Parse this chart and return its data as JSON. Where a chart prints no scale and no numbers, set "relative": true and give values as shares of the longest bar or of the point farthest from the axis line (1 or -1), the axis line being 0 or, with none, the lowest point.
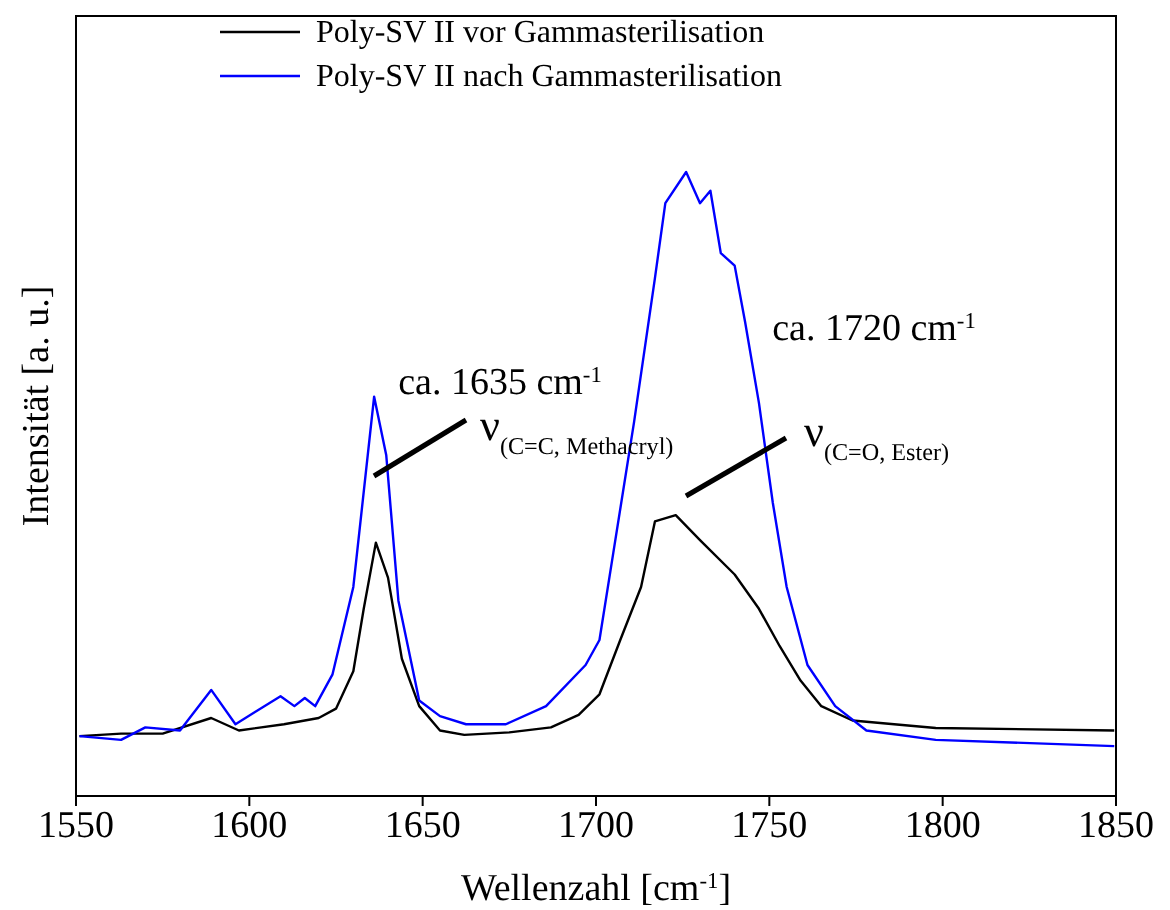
{
  "chart_data": {
    "type": "line",
    "relative": true,
    "xlabel": "Wellenzahl [cm$^{-1}$]",
    "ylabel": "Intensität [a. u.]",
    "xlim": [
      1550,
      1850
    ],
    "xticks": [
      1550,
      1600,
      1650,
      1700,
      1750,
      1800,
      1850
    ],
    "legend": "top left",
    "grid": false,
    "marker": "none",
    "line_style": "solid",
    "series": [
      {
        "name": "Poly-SV II vor Gammasterilisation",
        "color": "#000000",
        "x": [
          1551,
          1563,
          1575,
          1589,
          1597,
          1610,
          1620,
          1625,
          1630,
          1633,
          1636.5,
          1640,
          1644,
          1649,
          1655,
          1662,
          1675,
          1687,
          1695,
          1701,
          1707,
          1713,
          1717,
          1723,
          1730,
          1740,
          1747,
          1753,
          1759,
          1765,
          1774,
          1798,
          1849.5
        ],
        "values": [
          0.096,
          0.1,
          0.1,
          0.125,
          0.105,
          0.115,
          0.125,
          0.14,
          0.2,
          0.3,
          0.406,
          0.35,
          0.22,
          0.144,
          0.105,
          0.098,
          0.102,
          0.11,
          0.13,
          0.163,
          0.25,
          0.335,
          0.44,
          0.45,
          0.41,
          0.355,
          0.3,
          0.24,
          0.185,
          0.144,
          0.121,
          0.109,
          0.105
        ]
      },
      {
        "name": "Poly-SV II nach Gammasterilisation",
        "color": "#0000ff",
        "x": [
          1551,
          1563,
          1570,
          1580,
          1589,
          1596,
          1609,
          1613,
          1616,
          1619,
          1624,
          1630,
          1636,
          1639.5,
          1643,
          1649,
          1655,
          1662.5,
          1674,
          1685.6,
          1697,
          1701,
          1705,
          1711,
          1717,
          1720,
          1726,
          1730,
          1733,
          1736,
          1740,
          1743,
          1747,
          1751,
          1755,
          1761,
          1769,
          1778,
          1798,
          1849.5
        ],
        "values": [
          0.096,
          0.09,
          0.11,
          0.105,
          0.17,
          0.115,
          0.16,
          0.144,
          0.157,
          0.144,
          0.195,
          0.335,
          0.64,
          0.546,
          0.313,
          0.153,
          0.128,
          0.115,
          0.115,
          0.144,
          0.21,
          0.25,
          0.39,
          0.6,
          0.83,
          0.95,
          1,
          0.95,
          0.97,
          0.87,
          0.85,
          0.76,
          0.63,
          0.47,
          0.335,
          0.21,
          0.144,
          0.105,
          0.09,
          0.08
        ]
      }
    ],
    "annotations": [
      "ca. 1635 cm$^{-1}$",
      "ν$_{(C=C, Methacryl)}$",
      "ca. 1720 cm$^{-1}$",
      "ν$_{(C=O, Ester)}$"
    ]
  }
}
